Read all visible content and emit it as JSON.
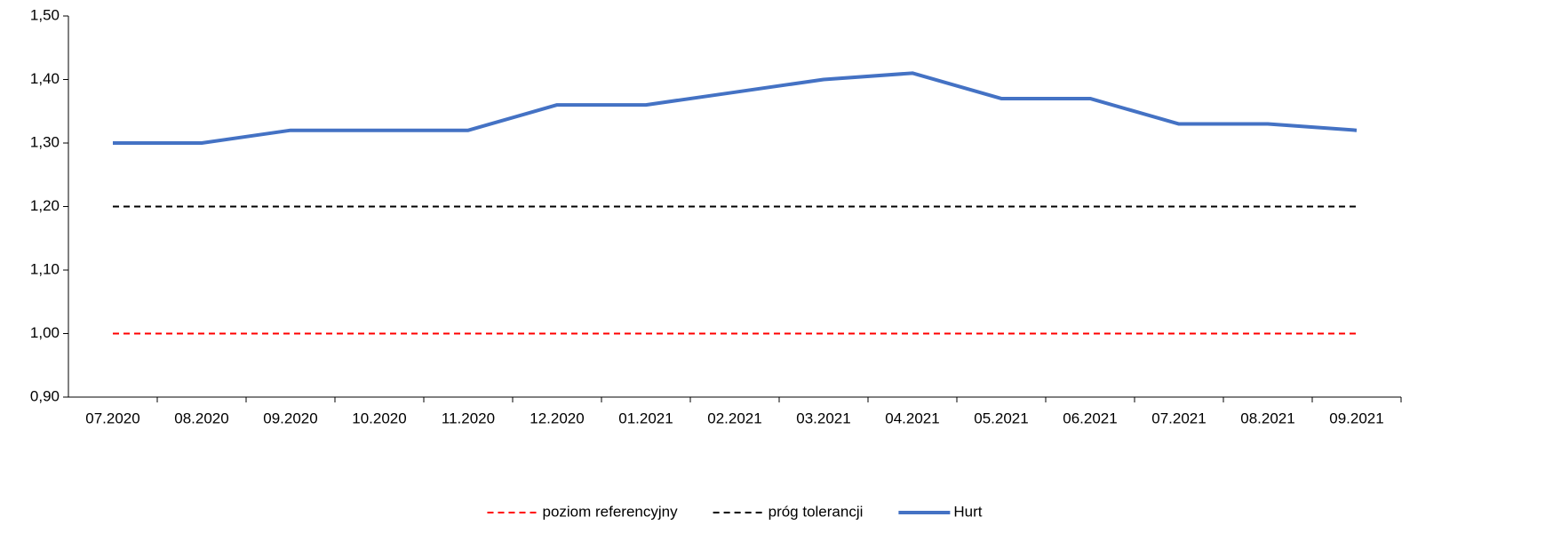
{
  "chart_data": {
    "type": "line",
    "categories": [
      "07.2020",
      "08.2020",
      "09.2020",
      "10.2020",
      "11.2020",
      "12.2020",
      "01.2021",
      "02.2021",
      "03.2021",
      "04.2021",
      "05.2021",
      "06.2021",
      "07.2021",
      "08.2021",
      "09.2021"
    ],
    "series": [
      {
        "name": "poziom referencyjny",
        "color": "#ff0000",
        "dash": true,
        "values": [
          1,
          1,
          1,
          1,
          1,
          1,
          1,
          1,
          1,
          1,
          1,
          1,
          1,
          1,
          1
        ]
      },
      {
        "name": "próg tolerancji",
        "color": "#000000",
        "dash": true,
        "values": [
          1.2,
          1.2,
          1.2,
          1.2,
          1.2,
          1.2,
          1.2,
          1.2,
          1.2,
          1.2,
          1.2,
          1.2,
          1.2,
          1.2,
          1.2
        ]
      },
      {
        "name": "Hurt",
        "color": "#4472c4",
        "dash": false,
        "values": [
          1.3,
          1.3,
          1.32,
          1.32,
          1.32,
          1.36,
          1.36,
          1.38,
          1.4,
          1.41,
          1.37,
          1.37,
          1.33,
          1.33,
          1.32
        ]
      }
    ],
    "ylim": [
      0.9,
      1.5
    ],
    "yticks": [
      {
        "value": 0.9,
        "label": "0,90"
      },
      {
        "value": 1.0,
        "label": "1,00"
      },
      {
        "value": 1.1,
        "label": "1,10"
      },
      {
        "value": 1.2,
        "label": "1,20"
      },
      {
        "value": 1.3,
        "label": "1,30"
      },
      {
        "value": 1.4,
        "label": "1,40"
      },
      {
        "value": 1.5,
        "label": "1,50"
      }
    ],
    "legend": "bottom"
  }
}
